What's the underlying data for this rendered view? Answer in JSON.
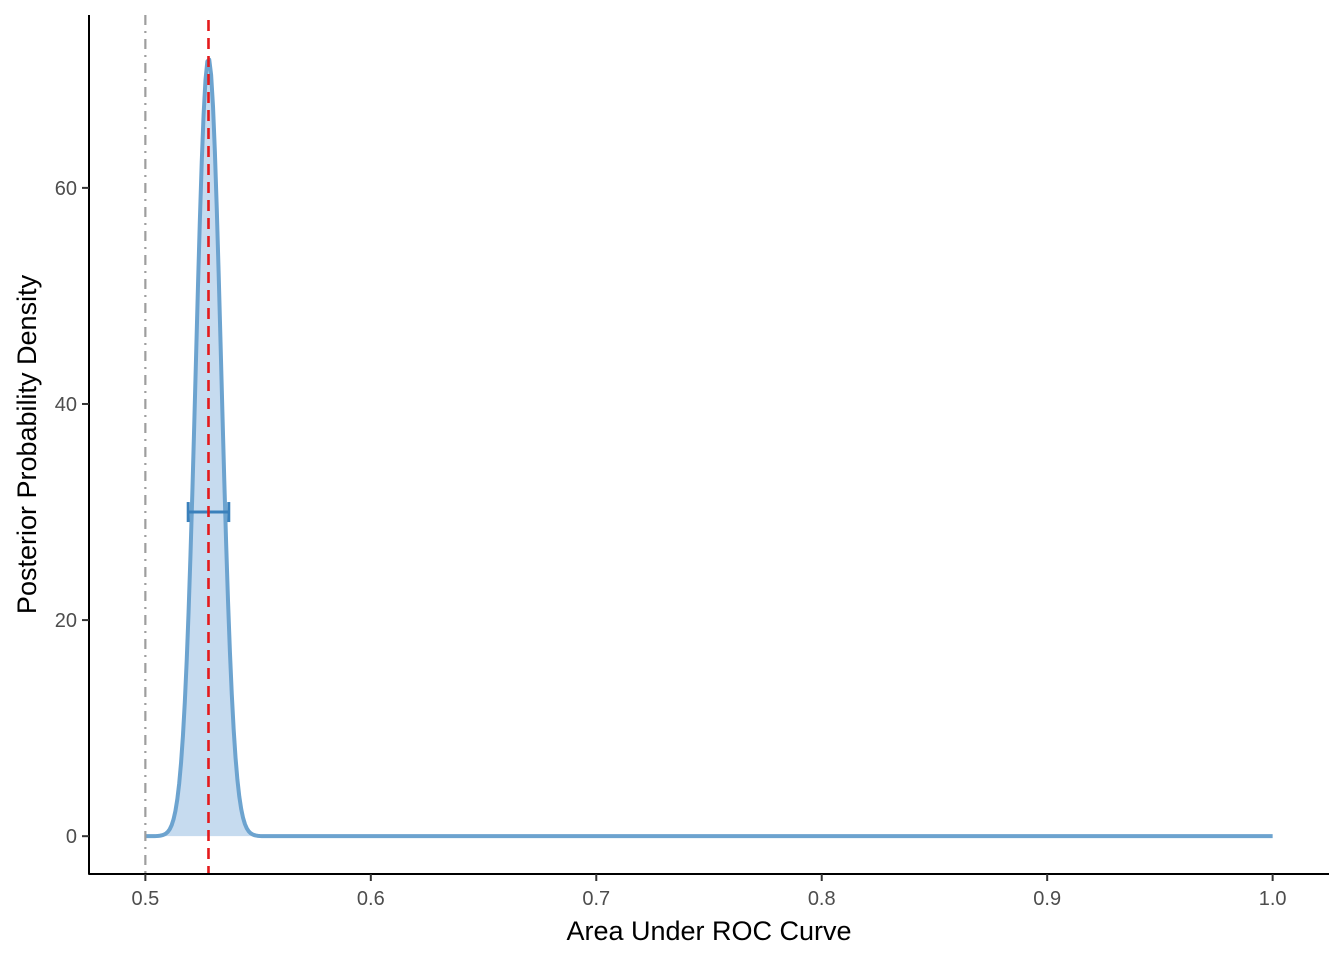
{
  "chart_data": {
    "type": "area",
    "title": "",
    "xlabel": "Area Under ROC Curve",
    "ylabel": "Posterior Probability Density",
    "xlim": [
      0.475,
      1.025
    ],
    "ylim": [
      -3.5,
      76
    ],
    "grid": false,
    "legend": "none",
    "x_ticks": [
      0.5,
      0.6,
      0.7,
      0.8,
      0.9,
      1.0
    ],
    "x_tick_labels": [
      "0.5",
      "0.6",
      "0.7",
      "0.8",
      "0.9",
      "1.0"
    ],
    "y_ticks": [
      0,
      20,
      40,
      60
    ],
    "y_tick_labels": [
      "0",
      "20",
      "40",
      "60"
    ],
    "density": {
      "mean": 0.528,
      "sd": 0.0056,
      "peak": 72,
      "x_start": 0.5,
      "x_end": 1.0,
      "line_color": "#6ca3cf",
      "fill_color": "#c6dbef"
    },
    "interval": {
      "lower": 0.519,
      "upper": 0.537,
      "y": 30,
      "color": "#3a80bb"
    },
    "reference_line": {
      "x": 0.5,
      "style": "dotdash",
      "color": "#9e9e9e"
    },
    "estimate_line": {
      "x": 0.528,
      "style": "dashed",
      "color": "#e41a1c"
    }
  }
}
